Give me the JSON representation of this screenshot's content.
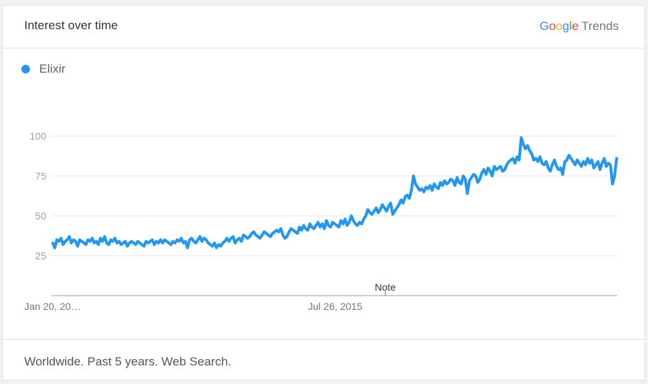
{
  "header": {
    "title": "Interest over time",
    "brand": {
      "letters": [
        "G",
        "o",
        "o",
        "g",
        "l",
        "e"
      ],
      "letter_colors": [
        "#4285f4",
        "#ea4335",
        "#fbbc05",
        "#4285f4",
        "#34a853",
        "#ea4335"
      ],
      "product": "Trends"
    }
  },
  "legend": {
    "label": "Elixir",
    "color": "#2196f3"
  },
  "footer": {
    "text": "Worldwide. Past 5 years. Web Search."
  },
  "chart_data": {
    "type": "line",
    "ylim": [
      0,
      100
    ],
    "yticks": [
      25,
      50,
      75,
      100
    ],
    "x_tick_labels": [
      "Jan 20, 20…",
      "Jul 26, 2015"
    ],
    "x_tick_positions": [
      0,
      0.5
    ],
    "annotation": "Note",
    "annotation_position": 0.59,
    "grid": true,
    "series": [
      {
        "name": "Elixir",
        "color": "#2196f3",
        "values": [
          33,
          30,
          35,
          34,
          36,
          32,
          34,
          35,
          37,
          33,
          35,
          34,
          31,
          35,
          34,
          33,
          32,
          35,
          34,
          36,
          33,
          34,
          32,
          36,
          34,
          37,
          33,
          32,
          35,
          34,
          36,
          33,
          34,
          32,
          33,
          34,
          31,
          33,
          34,
          33,
          32,
          34,
          33,
          32,
          31,
          34,
          33,
          34,
          35,
          32,
          34,
          33,
          35,
          33,
          35,
          34,
          33,
          32,
          34,
          33,
          35,
          34,
          36,
          33,
          34,
          30,
          35,
          36,
          34,
          33,
          35,
          37,
          34,
          36,
          35,
          33,
          32,
          31,
          33,
          30,
          32,
          31,
          33,
          34,
          36,
          34,
          36,
          37,
          33,
          35,
          36,
          34,
          38,
          37,
          36,
          37,
          39,
          40,
          38,
          37,
          36,
          38,
          40,
          39,
          38,
          37,
          39,
          40,
          41,
          40,
          42,
          38,
          36,
          37,
          40,
          42,
          41,
          40,
          39,
          43,
          41,
          44,
          42,
          41,
          45,
          43,
          42,
          44,
          46,
          43,
          45,
          42,
          47,
          44,
          43,
          46,
          45,
          44,
          43,
          47,
          45,
          48,
          44,
          46,
          50,
          47,
          45,
          44,
          46,
          45,
          48,
          50,
          54,
          52,
          51,
          53,
          55,
          52,
          54,
          57,
          55,
          53,
          56,
          58,
          51,
          53,
          55,
          57,
          60,
          58,
          62,
          63,
          61,
          66,
          75,
          70,
          68,
          66,
          67,
          65,
          68,
          67,
          69,
          66,
          70,
          68,
          67,
          71,
          69,
          72,
          70,
          71,
          73,
          72,
          69,
          74,
          71,
          70,
          75,
          73,
          64,
          72,
          74,
          76,
          75,
          71,
          73,
          77,
          79,
          76,
          80,
          78,
          75,
          81,
          79,
          80,
          81,
          78,
          79,
          82,
          84,
          85,
          86,
          83,
          87,
          85,
          99,
          95,
          92,
          94,
          91,
          89,
          85,
          86,
          84,
          87,
          83,
          82,
          84,
          80,
          78,
          82,
          85,
          81,
          79,
          80,
          76,
          84,
          85,
          88,
          86,
          84,
          82,
          85,
          83,
          81,
          84,
          82,
          86,
          83,
          85,
          80,
          82,
          84,
          79,
          83,
          86,
          81,
          83,
          82,
          70,
          75,
          86
        ]
      }
    ]
  }
}
